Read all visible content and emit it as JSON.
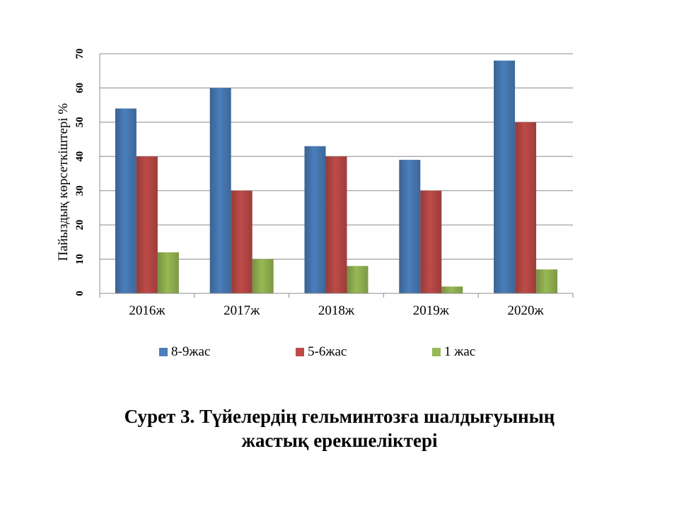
{
  "caption": {
    "line1": "Сурет 3. Түйелердің гельминтозға шалдығуының",
    "line2": "жастық ерекшеліктері"
  },
  "legend": [
    {
      "label": "8-9жас",
      "color": "#4a7ebb"
    },
    {
      "label": "5-6жас",
      "color": "#be4b48"
    },
    {
      "label": "1 жас",
      "color": "#98b954"
    }
  ],
  "chart_data": {
    "type": "bar",
    "title": "",
    "xlabel": "",
    "ylabel": "Пайыздық көрсеткіштері %",
    "categories": [
      "2016ж",
      "2017ж",
      "2018ж",
      "2019ж",
      "2020ж"
    ],
    "ylim": [
      0,
      70
    ],
    "yticks": [
      0,
      10,
      20,
      30,
      40,
      50,
      60,
      70
    ],
    "grid": true,
    "legend_position": "bottom",
    "series": [
      {
        "name": "8-9жас",
        "color": "#4a7ebb",
        "values": [
          54,
          60,
          43,
          39,
          68
        ]
      },
      {
        "name": "5-6жас",
        "color": "#be4b48",
        "values": [
          40,
          30,
          40,
          30,
          50
        ]
      },
      {
        "name": "1 жас",
        "color": "#98b954",
        "values": [
          12,
          10,
          8,
          2,
          7
        ]
      }
    ]
  }
}
